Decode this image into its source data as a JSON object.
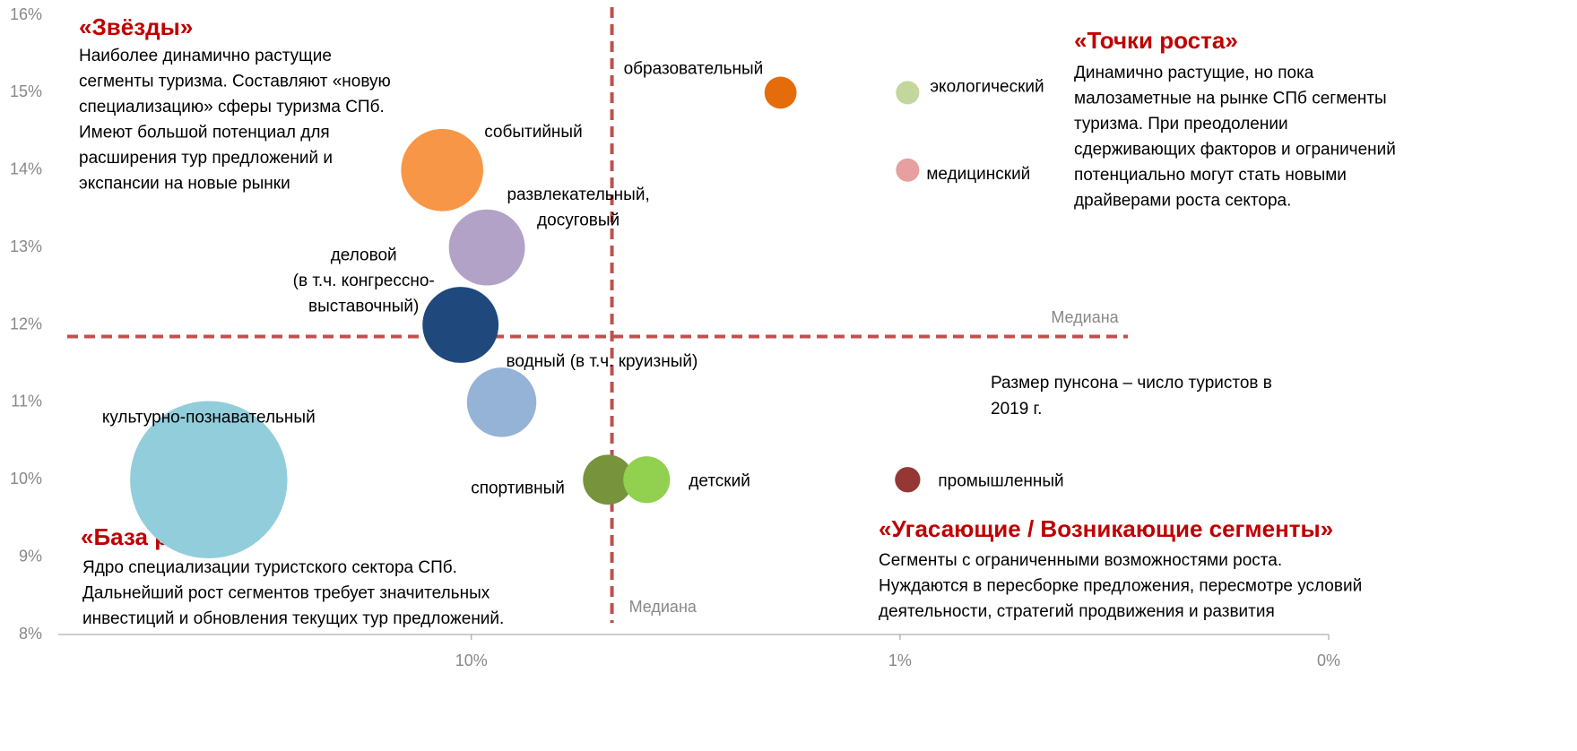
{
  "chart_data": {
    "type": "bubble",
    "xlim": [
      92,
      0.1
    ],
    "xscale": "log",
    "xreversed": true,
    "xticks": [
      {
        "value": 10,
        "label": "10%"
      },
      {
        "value": 1,
        "label": "1%"
      },
      {
        "value": 0.1,
        "label": "0%"
      }
    ],
    "ylim": [
      8,
      16
    ],
    "yticks": [
      {
        "value": 8,
        "label": "8%"
      },
      {
        "value": 9,
        "label": "9%"
      },
      {
        "value": 10,
        "label": "10%"
      },
      {
        "value": 11,
        "label": "11%"
      },
      {
        "value": 12,
        "label": "12%"
      },
      {
        "value": 13,
        "label": "13%"
      },
      {
        "value": 14,
        "label": "14%"
      },
      {
        "value": 15,
        "label": "15%"
      },
      {
        "value": 16,
        "label": "16%"
      }
    ],
    "series": [
      {
        "name": [
          "культурно-познавательный"
        ],
        "color": "#92cddc",
        "x": 41,
        "y": 10,
        "size": 77
      },
      {
        "name": [
          "событийный"
        ],
        "color": "#f79646",
        "x": 11.7,
        "y": 14,
        "size": 21
      },
      {
        "name": [
          "развлекательный,",
          "досуговый"
        ],
        "color": "#b3a2c7",
        "x": 9.2,
        "y": 13,
        "size": 18
      },
      {
        "name": [
          "деловой",
          "(в т.ч. конгрессно-",
          "выставочный)"
        ],
        "color": "#1f497d",
        "x": 10.6,
        "y": 12,
        "size": 18
      },
      {
        "name": [
          "водный (в т.ч. круизный)"
        ],
        "color": "#95b3d7",
        "x": 8.5,
        "y": 11,
        "size": 15
      },
      {
        "name": [
          "спортивный"
        ],
        "color": "#77933c",
        "x": 4.8,
        "y": 10,
        "size": 7.8
      },
      {
        "name": [
          "детский"
        ],
        "color": "#92d050",
        "x": 3.9,
        "y": 10,
        "size": 6.8
      },
      {
        "name": [
          "образовательный"
        ],
        "color": "#e46c0a",
        "x": 1.9,
        "y": 15,
        "size": 3.2
      },
      {
        "name": [
          "экологический"
        ],
        "color": "#c3d69b",
        "x": 0.96,
        "y": 15,
        "size": 1.7
      },
      {
        "name": [
          "медицинский"
        ],
        "color": "#e6a0a0",
        "x": 0.96,
        "y": 14,
        "size": 1.7
      },
      {
        "name": [
          "промышленный"
        ],
        "color": "#953735",
        "x": 0.96,
        "y": 10,
        "size": 2.0
      }
    ],
    "median_x": 4.7,
    "median_y": 11.85,
    "median_label": "Медиана",
    "median_color": "#c0504d",
    "quadrants": [
      {
        "title": "«Звёзды»",
        "text": [
          "Наиболее динамично растущие",
          "сегменты туризма. Составляют «новую",
          "специализацию» сферы туризма СПб.",
          "Имеют большой потенциал для",
          "расширения тур предложений и",
          "экспансии  на новые рынки"
        ]
      },
      {
        "title": "«Точки роста»",
        "text": [
          "Динамично растущие, но пока",
          "малозаметные на рынке СПб сегменты",
          "туризма. При преодолении",
          "сдерживающих факторов и ограничений",
          "потенциально могут стать новыми",
          "драйверами роста сектора."
        ]
      },
      {
        "title": "«База роста»",
        "text": [
          "Ядро специализации туристского сектора СПб.",
          "Дальнейший рост сегментов требует значительных",
          "инвестиций и обновления текущих тур предложений."
        ]
      },
      {
        "title": "«Угасающие / Возникающие сегменты»",
        "text": [
          "Сегменты с ограниченными возможностями роста.",
          "Нуждаются в пересборке предложения, пересмотре условий",
          "деятельности, стратегий продвижения и развития"
        ]
      }
    ],
    "note": [
      "Размер пунсона – число туристов в",
      "2019 г."
    ]
  }
}
